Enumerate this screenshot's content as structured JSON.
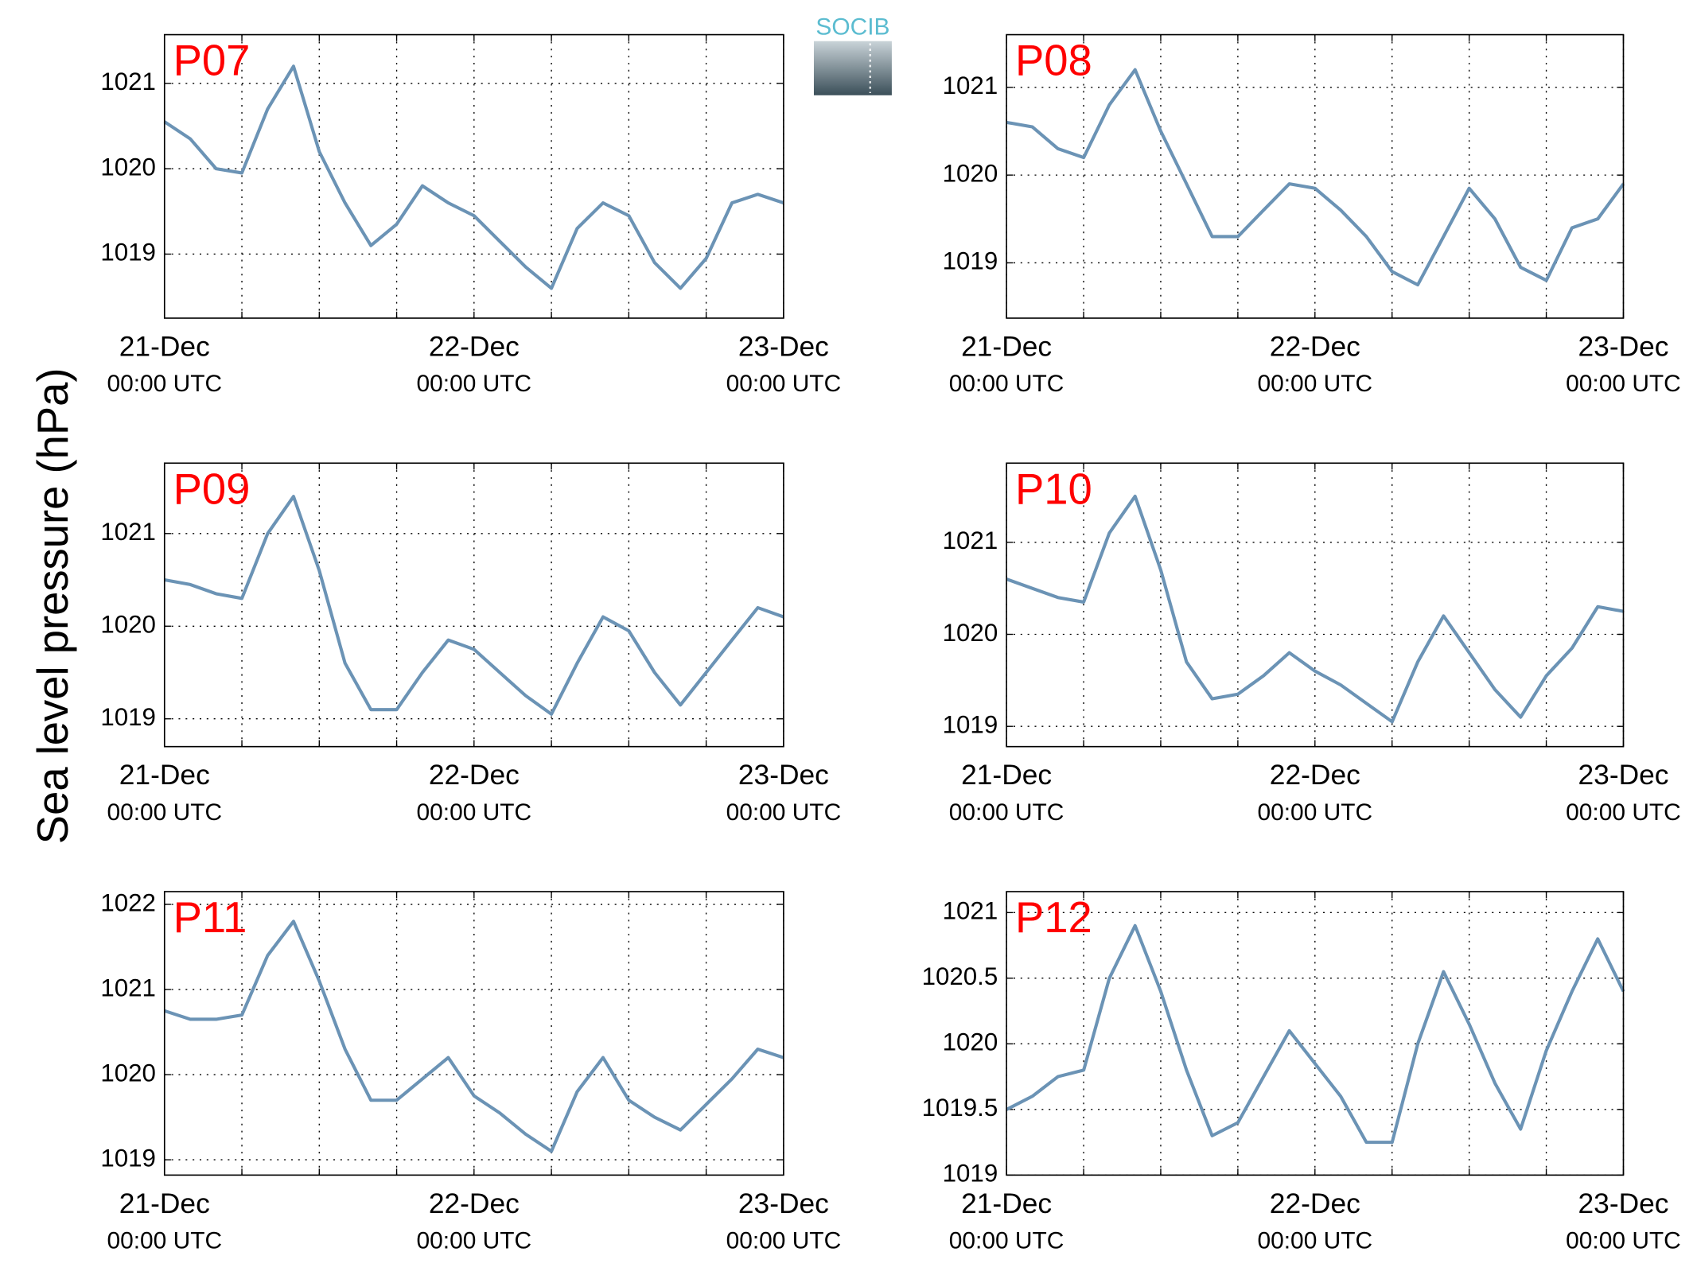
{
  "ylabel": "Sea level pressure (hPa)",
  "logo": "SOCIB",
  "chart_data": [
    {
      "type": "line",
      "x": [
        "21-Dec 00:00",
        "21-Dec 02:00",
        "21-Dec 04:00",
        "21-Dec 06:00",
        "21-Dec 08:00",
        "21-Dec 10:00",
        "21-Dec 12:00",
        "21-Dec 14:00",
        "21-Dec 16:00",
        "21-Dec 18:00",
        "21-Dec 20:00",
        "21-Dec 22:00",
        "22-Dec 00:00",
        "22-Dec 02:00",
        "22-Dec 04:00",
        "22-Dec 06:00",
        "22-Dec 08:00",
        "22-Dec 10:00",
        "22-Dec 12:00",
        "22-Dec 14:00",
        "22-Dec 16:00",
        "22-Dec 18:00",
        "22-Dec 20:00",
        "22-Dec 22:00",
        "23-Dec 00:00"
      ],
      "series": [
        {
          "name": "P07",
          "color": "#6b93b5",
          "values": [
            1020.55,
            1020.35,
            1020.0,
            1019.95,
            1020.7,
            1021.2,
            1020.2,
            1019.6,
            1019.1,
            1019.35,
            1019.8,
            1019.6,
            1019.45,
            1019.15,
            1018.85,
            1018.6,
            1019.3,
            1019.6,
            1019.45,
            1018.9,
            1018.6,
            1018.95,
            1019.6,
            1019.7,
            1019.6
          ]
        }
      ],
      "xlim": [
        "21-Dec 00:00",
        "23-Dec 00:00"
      ],
      "xticks": [
        {
          "value": "21-Dec 00:00",
          "label": [
            "21-Dec",
            "00:00 UTC"
          ]
        },
        {
          "value": "21-Dec 06:00",
          "label": null
        },
        {
          "value": "21-Dec 12:00",
          "label": null
        },
        {
          "value": "21-Dec 18:00",
          "label": null
        },
        {
          "value": "22-Dec 00:00",
          "label": [
            "22-Dec",
            "00:00 UTC"
          ]
        },
        {
          "value": "22-Dec 06:00",
          "label": null
        },
        {
          "value": "22-Dec 12:00",
          "label": null
        },
        {
          "value": "22-Dec 18:00",
          "label": null
        },
        {
          "value": "23-Dec 00:00",
          "label": [
            "23-Dec",
            "00:00 UTC"
          ]
        }
      ],
      "ylim": [
        1018.25,
        1021.57
      ],
      "yticks": [
        1019,
        1020,
        1021
      ],
      "grid": true
    },
    {
      "type": "line",
      "x": [
        "21-Dec 00:00",
        "21-Dec 02:00",
        "21-Dec 04:00",
        "21-Dec 06:00",
        "21-Dec 08:00",
        "21-Dec 10:00",
        "21-Dec 12:00",
        "21-Dec 14:00",
        "21-Dec 16:00",
        "21-Dec 18:00",
        "21-Dec 20:00",
        "21-Dec 22:00",
        "22-Dec 00:00",
        "22-Dec 02:00",
        "22-Dec 04:00",
        "22-Dec 06:00",
        "22-Dec 08:00",
        "22-Dec 10:00",
        "22-Dec 12:00",
        "22-Dec 14:00",
        "22-Dec 16:00",
        "22-Dec 18:00",
        "22-Dec 20:00",
        "22-Dec 22:00",
        "23-Dec 00:00"
      ],
      "series": [
        {
          "name": "P08",
          "color": "#6b93b5",
          "values": [
            1020.6,
            1020.55,
            1020.3,
            1020.2,
            1020.8,
            1021.2,
            1020.5,
            1019.9,
            1019.3,
            1019.3,
            1019.6,
            1019.9,
            1019.85,
            1019.6,
            1019.3,
            1018.9,
            1018.75,
            1019.3,
            1019.85,
            1019.5,
            1018.95,
            1018.8,
            1019.4,
            1019.5,
            1019.9
          ]
        }
      ],
      "xlim": [
        "21-Dec 00:00",
        "23-Dec 00:00"
      ],
      "xticks": [
        {
          "value": "21-Dec 00:00",
          "label": [
            "21-Dec",
            "00:00 UTC"
          ]
        },
        {
          "value": "21-Dec 06:00",
          "label": null
        },
        {
          "value": "21-Dec 12:00",
          "label": null
        },
        {
          "value": "21-Dec 18:00",
          "label": null
        },
        {
          "value": "22-Dec 00:00",
          "label": [
            "22-Dec",
            "00:00 UTC"
          ]
        },
        {
          "value": "22-Dec 06:00",
          "label": null
        },
        {
          "value": "22-Dec 12:00",
          "label": null
        },
        {
          "value": "22-Dec 18:00",
          "label": null
        },
        {
          "value": "23-Dec 00:00",
          "label": [
            "23-Dec",
            "00:00 UTC"
          ]
        }
      ],
      "ylim": [
        1018.37,
        1021.6
      ],
      "yticks": [
        1019,
        1020,
        1021
      ],
      "grid": true
    },
    {
      "type": "line",
      "x": [
        "21-Dec 00:00",
        "21-Dec 02:00",
        "21-Dec 04:00",
        "21-Dec 06:00",
        "21-Dec 08:00",
        "21-Dec 10:00",
        "21-Dec 12:00",
        "21-Dec 14:00",
        "21-Dec 16:00",
        "21-Dec 18:00",
        "21-Dec 20:00",
        "21-Dec 22:00",
        "22-Dec 00:00",
        "22-Dec 02:00",
        "22-Dec 04:00",
        "22-Dec 06:00",
        "22-Dec 08:00",
        "22-Dec 10:00",
        "22-Dec 12:00",
        "22-Dec 14:00",
        "22-Dec 16:00",
        "22-Dec 18:00",
        "22-Dec 20:00",
        "22-Dec 22:00",
        "23-Dec 00:00"
      ],
      "series": [
        {
          "name": "P09",
          "color": "#6b93b5",
          "values": [
            1020.5,
            1020.45,
            1020.35,
            1020.3,
            1021.0,
            1021.4,
            1020.6,
            1019.6,
            1019.1,
            1019.1,
            1019.5,
            1019.85,
            1019.75,
            1019.5,
            1019.25,
            1019.05,
            1019.6,
            1020.1,
            1019.95,
            1019.5,
            1019.15,
            1019.5,
            1019.85,
            1020.2,
            1020.1
          ]
        }
      ],
      "xlim": [
        "21-Dec 00:00",
        "23-Dec 00:00"
      ],
      "xticks": [
        {
          "value": "21-Dec 00:00",
          "label": [
            "21-Dec",
            "00:00 UTC"
          ]
        },
        {
          "value": "21-Dec 06:00",
          "label": null
        },
        {
          "value": "21-Dec 12:00",
          "label": null
        },
        {
          "value": "21-Dec 18:00",
          "label": null
        },
        {
          "value": "22-Dec 00:00",
          "label": [
            "22-Dec",
            "00:00 UTC"
          ]
        },
        {
          "value": "22-Dec 06:00",
          "label": null
        },
        {
          "value": "22-Dec 12:00",
          "label": null
        },
        {
          "value": "22-Dec 18:00",
          "label": null
        },
        {
          "value": "23-Dec 00:00",
          "label": [
            "23-Dec",
            "00:00 UTC"
          ]
        }
      ],
      "ylim": [
        1018.7,
        1021.76
      ],
      "yticks": [
        1019,
        1020,
        1021
      ],
      "grid": true
    },
    {
      "type": "line",
      "x": [
        "21-Dec 00:00",
        "21-Dec 02:00",
        "21-Dec 04:00",
        "21-Dec 06:00",
        "21-Dec 08:00",
        "21-Dec 10:00",
        "21-Dec 12:00",
        "21-Dec 14:00",
        "21-Dec 16:00",
        "21-Dec 18:00",
        "21-Dec 20:00",
        "21-Dec 22:00",
        "22-Dec 00:00",
        "22-Dec 02:00",
        "22-Dec 04:00",
        "22-Dec 06:00",
        "22-Dec 08:00",
        "22-Dec 10:00",
        "22-Dec 12:00",
        "22-Dec 14:00",
        "22-Dec 16:00",
        "22-Dec 18:00",
        "22-Dec 20:00",
        "22-Dec 22:00",
        "23-Dec 00:00"
      ],
      "series": [
        {
          "name": "P10",
          "color": "#6b93b5",
          "values": [
            1020.6,
            1020.5,
            1020.4,
            1020.35,
            1021.1,
            1021.5,
            1020.7,
            1019.7,
            1019.3,
            1019.35,
            1019.55,
            1019.8,
            1019.6,
            1019.45,
            1019.25,
            1019.05,
            1019.7,
            1020.2,
            1019.8,
            1019.4,
            1019.1,
            1019.55,
            1019.85,
            1020.3,
            1020.25
          ]
        }
      ],
      "xlim": [
        "21-Dec 00:00",
        "23-Dec 00:00"
      ],
      "xticks": [
        {
          "value": "21-Dec 00:00",
          "label": [
            "21-Dec",
            "00:00 UTC"
          ]
        },
        {
          "value": "21-Dec 06:00",
          "label": null
        },
        {
          "value": "21-Dec 12:00",
          "label": null
        },
        {
          "value": "21-Dec 18:00",
          "label": null
        },
        {
          "value": "22-Dec 00:00",
          "label": [
            "22-Dec",
            "00:00 UTC"
          ]
        },
        {
          "value": "22-Dec 06:00",
          "label": null
        },
        {
          "value": "22-Dec 12:00",
          "label": null
        },
        {
          "value": "22-Dec 18:00",
          "label": null
        },
        {
          "value": "23-Dec 00:00",
          "label": [
            "23-Dec",
            "00:00 UTC"
          ]
        }
      ],
      "ylim": [
        1018.78,
        1021.86
      ],
      "yticks": [
        1019,
        1020,
        1021
      ],
      "grid": true
    },
    {
      "type": "line",
      "x": [
        "21-Dec 00:00",
        "21-Dec 02:00",
        "21-Dec 04:00",
        "21-Dec 06:00",
        "21-Dec 08:00",
        "21-Dec 10:00",
        "21-Dec 12:00",
        "21-Dec 14:00",
        "21-Dec 16:00",
        "21-Dec 18:00",
        "21-Dec 20:00",
        "21-Dec 22:00",
        "22-Dec 00:00",
        "22-Dec 02:00",
        "22-Dec 04:00",
        "22-Dec 06:00",
        "22-Dec 08:00",
        "22-Dec 10:00",
        "22-Dec 12:00",
        "22-Dec 14:00",
        "22-Dec 16:00",
        "22-Dec 18:00",
        "22-Dec 20:00",
        "22-Dec 22:00",
        "23-Dec 00:00"
      ],
      "series": [
        {
          "name": "P11",
          "color": "#6b93b5",
          "values": [
            1020.75,
            1020.65,
            1020.65,
            1020.7,
            1021.4,
            1021.8,
            1021.1,
            1020.3,
            1019.7,
            1019.7,
            1019.95,
            1020.2,
            1019.75,
            1019.55,
            1019.3,
            1019.1,
            1019.8,
            1020.2,
            1019.7,
            1019.5,
            1019.35,
            1019.65,
            1019.95,
            1020.3,
            1020.2
          ]
        }
      ],
      "xlim": [
        "21-Dec 00:00",
        "23-Dec 00:00"
      ],
      "xticks": [
        {
          "value": "21-Dec 00:00",
          "label": [
            "21-Dec",
            "00:00 UTC"
          ]
        },
        {
          "value": "21-Dec 06:00",
          "label": null
        },
        {
          "value": "21-Dec 12:00",
          "label": null
        },
        {
          "value": "21-Dec 18:00",
          "label": null
        },
        {
          "value": "22-Dec 00:00",
          "label": [
            "22-Dec",
            "00:00 UTC"
          ]
        },
        {
          "value": "22-Dec 06:00",
          "label": null
        },
        {
          "value": "22-Dec 12:00",
          "label": null
        },
        {
          "value": "22-Dec 18:00",
          "label": null
        },
        {
          "value": "23-Dec 00:00",
          "label": [
            "23-Dec",
            "00:00 UTC"
          ]
        }
      ],
      "ylim": [
        1018.82,
        1022.15
      ],
      "yticks": [
        1019,
        1020,
        1021,
        1022
      ],
      "grid": true
    },
    {
      "type": "line",
      "x": [
        "21-Dec 00:00",
        "21-Dec 02:00",
        "21-Dec 04:00",
        "21-Dec 06:00",
        "21-Dec 08:00",
        "21-Dec 10:00",
        "21-Dec 12:00",
        "21-Dec 14:00",
        "21-Dec 16:00",
        "21-Dec 18:00",
        "21-Dec 20:00",
        "21-Dec 22:00",
        "22-Dec 00:00",
        "22-Dec 02:00",
        "22-Dec 04:00",
        "22-Dec 06:00",
        "22-Dec 08:00",
        "22-Dec 10:00",
        "22-Dec 12:00",
        "22-Dec 14:00",
        "22-Dec 16:00",
        "22-Dec 18:00",
        "22-Dec 20:00",
        "22-Dec 22:00",
        "23-Dec 00:00"
      ],
      "series": [
        {
          "name": "P12",
          "color": "#6b93b5",
          "values": [
            1019.5,
            1019.6,
            1019.75,
            1019.8,
            1020.5,
            1020.9,
            1020.4,
            1019.8,
            1019.3,
            1019.4,
            1019.75,
            1020.1,
            1019.85,
            1019.6,
            1019.25,
            1019.25,
            1020.0,
            1020.55,
            1020.15,
            1019.7,
            1019.35,
            1019.95,
            1020.4,
            1020.8,
            1020.4
          ]
        }
      ],
      "xlim": [
        "21-Dec 00:00",
        "23-Dec 00:00"
      ],
      "xticks": [
        {
          "value": "21-Dec 00:00",
          "label": [
            "21-Dec",
            "00:00 UTC"
          ]
        },
        {
          "value": "21-Dec 06:00",
          "label": null
        },
        {
          "value": "21-Dec 12:00",
          "label": null
        },
        {
          "value": "21-Dec 18:00",
          "label": null
        },
        {
          "value": "22-Dec 00:00",
          "label": [
            "22-Dec",
            "00:00 UTC"
          ]
        },
        {
          "value": "22-Dec 06:00",
          "label": null
        },
        {
          "value": "22-Dec 12:00",
          "label": null
        },
        {
          "value": "22-Dec 18:00",
          "label": null
        },
        {
          "value": "23-Dec 00:00",
          "label": [
            "23-Dec",
            "00:00 UTC"
          ]
        }
      ],
      "ylim": [
        1019,
        1021.16
      ],
      "yticks": [
        1019,
        1019.5,
        1020,
        1020.5,
        1021
      ],
      "grid": true
    }
  ]
}
